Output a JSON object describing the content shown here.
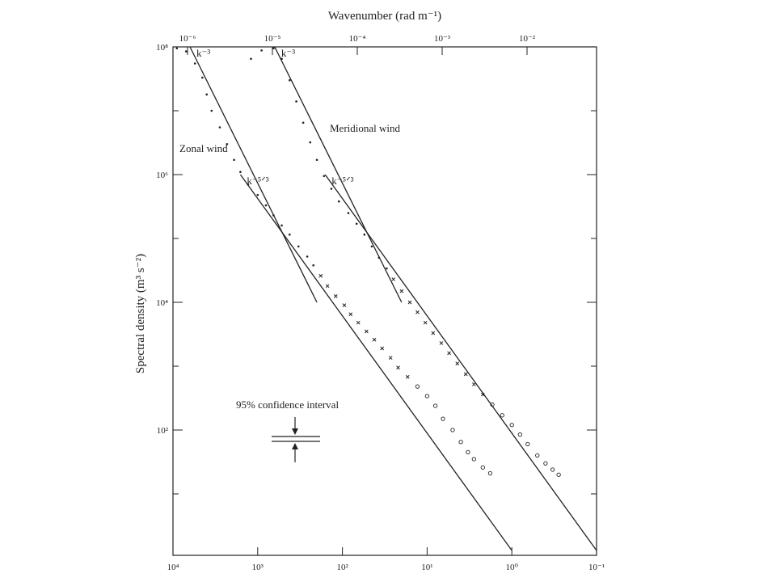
{
  "chart_data": {
    "type": "scatter",
    "title": "",
    "top_axis": {
      "label": "Wavenumber (rad m⁻¹)",
      "scale": "log",
      "ticks": [
        {
          "value": 1e-06,
          "label": "10⁻⁶"
        },
        {
          "value": 1e-05,
          "label": "10⁻⁵"
        },
        {
          "value": 0.0001,
          "label": "10⁻⁴"
        },
        {
          "value": 0.001,
          "label": "10⁻³"
        },
        {
          "value": 0.01,
          "label": "10⁻²"
        }
      ]
    },
    "bottom_axis": {
      "label": "",
      "scale": "log",
      "reversed": true,
      "range": [
        10000.0,
        0.1
      ],
      "ticks": [
        {
          "value": 10000.0,
          "label": "10⁴"
        },
        {
          "value": 1000.0,
          "label": "10³"
        },
        {
          "value": 100.0,
          "label": "10²"
        },
        {
          "value": 10.0,
          "label": "10¹"
        },
        {
          "value": 1.0,
          "label": "10⁰"
        },
        {
          "value": 0.1,
          "label": "10⁻¹"
        }
      ]
    },
    "y_axis": {
      "label": "Spectral density (m³ s⁻²)",
      "scale": "log",
      "range": [
        1.0,
        100000000.0
      ],
      "ticks": [
        {
          "value": 100000000.0,
          "label": "10⁸"
        },
        {
          "value": 1000000.0,
          "label": "10⁶"
        },
        {
          "value": 10000.0,
          "label": "10⁴"
        },
        {
          "value": 100.0,
          "label": "10²"
        }
      ],
      "minor_ticks": [
        10.0,
        1000.0,
        100000.0,
        10000000.0
      ]
    },
    "reference_lines": [
      {
        "label": "k⁻³",
        "series": "Zonal wind",
        "points": [
          [
            6300,
            100000000.0
          ],
          [
            200,
            10000.0
          ]
        ]
      },
      {
        "label": "k⁻⁵ᐟ³",
        "series": "Zonal wind",
        "points": [
          [
            1600,
            1000000.0
          ],
          [
            1,
            1.3
          ]
        ]
      },
      {
        "label": "k⁻³",
        "series": "Meridional wind",
        "points": [
          [
            630,
            100000000.0
          ],
          [
            20,
            10000.0
          ]
        ]
      },
      {
        "label": "k⁻⁵ᐟ³",
        "series": "Meridional wind",
        "points": [
          [
            160,
            1000000.0
          ],
          [
            0.1,
            1.3
          ]
        ]
      }
    ],
    "series": [
      {
        "name": "Zonal wind",
        "points": [
          [
            9000,
            95000000.0
          ],
          [
            7000,
            85000000.0
          ],
          [
            5500,
            55000000.0
          ],
          [
            4500,
            33000000.0
          ],
          [
            4000,
            18000000.0
          ],
          [
            3500,
            10000000.0
          ],
          [
            2800,
            5500000.0
          ],
          [
            2300,
            3000000.0
          ],
          [
            1900,
            1700000.0
          ],
          [
            1600,
            1100000.0
          ],
          [
            1300,
            700000.0
          ],
          [
            1000,
            480000.0
          ],
          [
            800,
            330000.0
          ],
          [
            650,
            230000.0
          ],
          [
            520,
            160000.0
          ],
          [
            420,
            115000.0
          ],
          [
            330,
            75000.0
          ],
          [
            260,
            52000.0
          ],
          [
            220,
            38000.0
          ],
          [
            180,
            26000.0
          ],
          [
            150,
            18000.0
          ],
          [
            120,
            12500.0
          ],
          [
            95,
            9000.0
          ],
          [
            80,
            6500.0
          ],
          [
            65,
            4800.0
          ],
          [
            52,
            3500.0
          ],
          [
            42,
            2600.0
          ],
          [
            34,
            1900.0
          ],
          [
            27,
            1350.0
          ],
          [
            22,
            950.0
          ],
          [
            17,
            680.0
          ],
          [
            13,
            480.0
          ],
          [
            10,
            340.0
          ],
          [
            8,
            240.0
          ],
          [
            6.5,
            150.0
          ],
          [
            5,
            100.0
          ],
          [
            4,
            65.0
          ],
          [
            3.3,
            45.0
          ],
          [
            2.8,
            35.0
          ],
          [
            2.2,
            26.0
          ],
          [
            1.8,
            21.0
          ]
        ]
      },
      {
        "name": "Meridional wind",
        "points": [
          [
            1200,
            65000000.0
          ],
          [
            900,
            88000000.0
          ],
          [
            650,
            95000000.0
          ],
          [
            520,
            65000000.0
          ],
          [
            420,
            30000000.0
          ],
          [
            350,
            14000000.0
          ],
          [
            290,
            6500000.0
          ],
          [
            240,
            3200000.0
          ],
          [
            200,
            1700000.0
          ],
          [
            165,
            950000.0
          ],
          [
            135,
            600000.0
          ],
          [
            110,
            380000.0
          ],
          [
            85,
            250000.0
          ],
          [
            68,
            170000.0
          ],
          [
            55,
            115000.0
          ],
          [
            45,
            75000.0
          ],
          [
            37,
            50000.0
          ],
          [
            30,
            34000.0
          ],
          [
            25,
            23000.0
          ],
          [
            20,
            15000.0
          ],
          [
            16,
            10000.0
          ],
          [
            13,
            7000.0
          ],
          [
            10.5,
            4800.0
          ],
          [
            8.5,
            3300.0
          ],
          [
            6.8,
            2300.0
          ],
          [
            5.5,
            1600.0
          ],
          [
            4.4,
            1100.0
          ],
          [
            3.5,
            750.0
          ],
          [
            2.8,
            520.0
          ],
          [
            2.2,
            360.0
          ],
          [
            1.7,
            250.0
          ],
          [
            1.3,
            170.0
          ],
          [
            1.0,
            120.0
          ],
          [
            0.8,
            85.0
          ],
          [
            0.65,
            60.0
          ],
          [
            0.5,
            40.0
          ],
          [
            0.4,
            30.0
          ],
          [
            0.33,
            24.0
          ],
          [
            0.28,
            20.0
          ]
        ]
      }
    ],
    "annotations": [
      {
        "text": "Zonal wind"
      },
      {
        "text": "Meridional wind"
      },
      {
        "text": "95% confidence interval"
      }
    ],
    "grid": false,
    "legend": "none"
  }
}
